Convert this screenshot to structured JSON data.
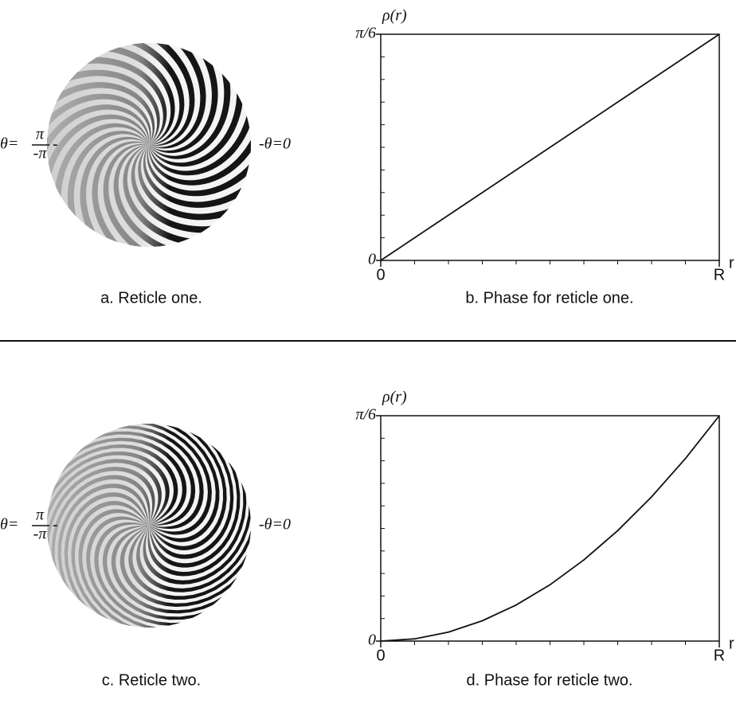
{
  "reticles": [
    {
      "caption": "a. Reticle one.",
      "left_prefix": "θ=",
      "numerator": "π",
      "denominator": "-π",
      "left_dash": "-",
      "right_label": "-θ=0"
    },
    {
      "caption": "c. Reticle two.",
      "left_prefix": "θ=",
      "numerator": "π",
      "denominator": "-π",
      "left_dash": "-",
      "right_label": "-θ=0"
    }
  ],
  "chart_data": [
    {
      "type": "line",
      "caption": "b. Phase for reticle one.",
      "y_label": "ρ(r)",
      "x_label": "r",
      "x": [
        0,
        1
      ],
      "series": [
        {
          "color": "#111111",
          "values": [
            0,
            1
          ]
        }
      ],
      "xlim": [
        0,
        1
      ],
      "ylim": [
        0,
        1
      ],
      "xticks": [
        0,
        {
          "value": 1,
          "label": "R"
        }
      ],
      "yticks": [
        0,
        {
          "value": 1,
          "label": "π/6"
        }
      ],
      "xminorticks": [
        0.1,
        0.2,
        0.3,
        0.4,
        0.5,
        0.6,
        0.7,
        0.8,
        0.9
      ],
      "yminorticks": [
        0.1,
        0.2,
        0.3,
        0.4,
        0.5,
        0.6,
        0.7,
        0.8,
        0.9
      ]
    },
    {
      "type": "line",
      "caption": "d. Phase for reticle two.",
      "y_label": "ρ(r)",
      "x_label": "r",
      "x": [
        0,
        0.1,
        0.2,
        0.3,
        0.4,
        0.5,
        0.6,
        0.7,
        0.8,
        0.9,
        1
      ],
      "series": [
        {
          "color": "#111111",
          "values": [
            0,
            0.01,
            0.04,
            0.09,
            0.16,
            0.25,
            0.36,
            0.49,
            0.64,
            0.81,
            1
          ]
        }
      ],
      "xlim": [
        0,
        1
      ],
      "ylim": [
        0,
        1
      ],
      "xticks": [
        0,
        {
          "value": 1,
          "label": "R"
        }
      ],
      "yticks": [
        0,
        {
          "value": 1,
          "label": "π/6"
        }
      ],
      "xminorticks": [
        0.1,
        0.2,
        0.3,
        0.4,
        0.5,
        0.6,
        0.7,
        0.8,
        0.9
      ],
      "yminorticks": [
        0.1,
        0.2,
        0.3,
        0.4,
        0.5,
        0.6,
        0.7,
        0.8,
        0.9
      ]
    }
  ]
}
